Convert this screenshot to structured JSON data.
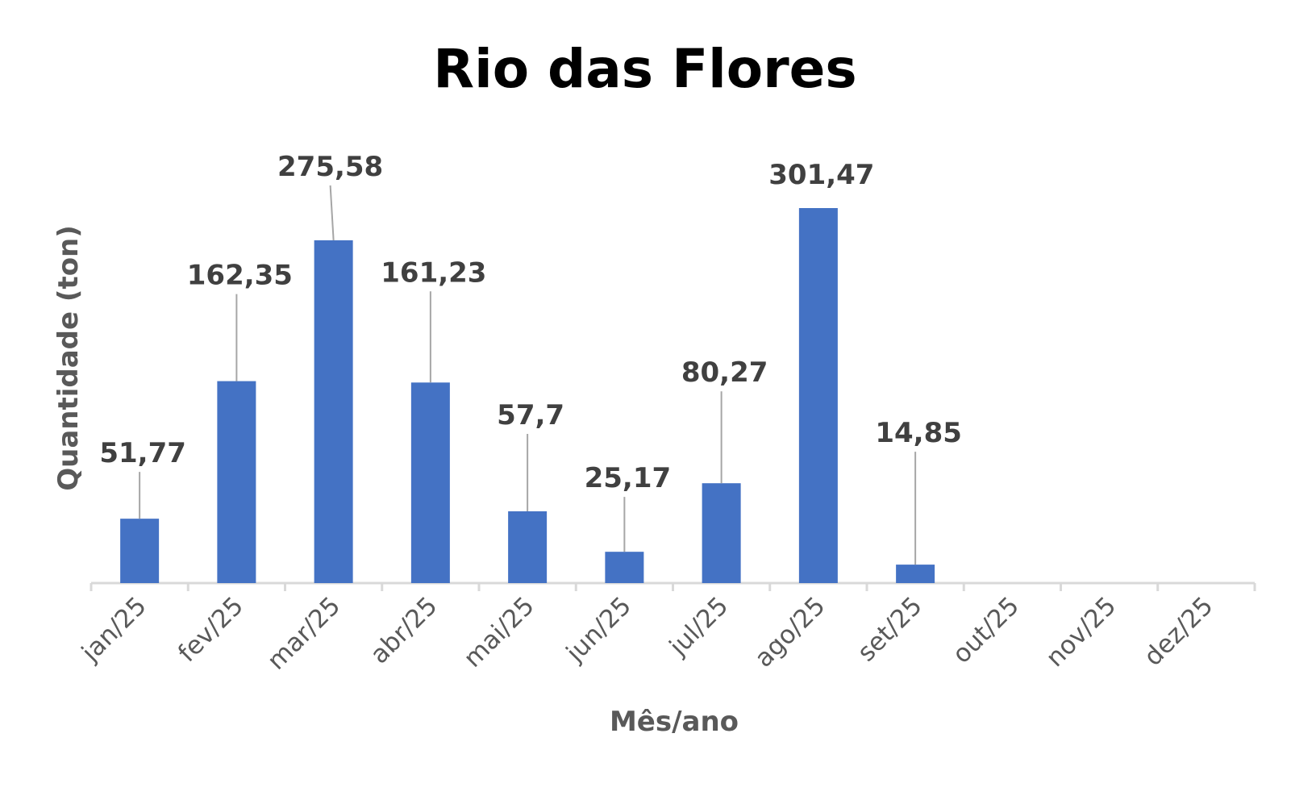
{
  "chart_data": {
    "type": "bar",
    "title": "Rio das Flores",
    "xlabel": "Mês/ano",
    "ylabel": "Quantidade (ton)",
    "categories": [
      "jan/25",
      "fev/25",
      "mar/25",
      "abr/25",
      "mai/25",
      "jun/25",
      "jul/25",
      "ago/25",
      "set/25",
      "out/25",
      "nov/25",
      "dez/25"
    ],
    "values": [
      51.77,
      162.35,
      275.58,
      161.23,
      57.7,
      25.17,
      80.27,
      301.47,
      14.85,
      null,
      null,
      null
    ],
    "data_labels": [
      "51,77",
      "162,35",
      "275,58",
      "161,23",
      "57,7",
      "25,17",
      "80,27",
      "301,47",
      "14,85",
      "",
      "",
      ""
    ],
    "ylim": [
      0,
      301.47
    ],
    "grid": false,
    "legend": "none",
    "bar_color": "#4472c4"
  }
}
